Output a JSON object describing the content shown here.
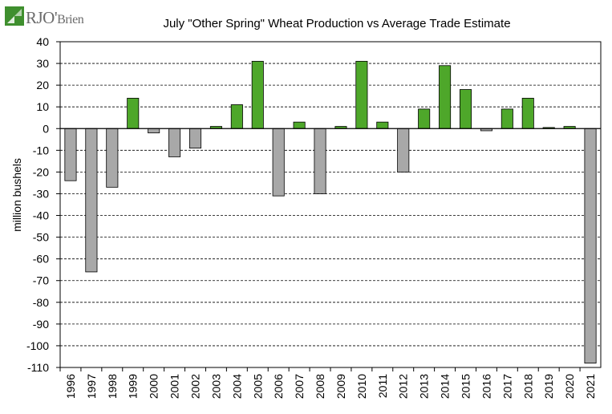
{
  "logo": {
    "text_main": "RJO",
    "text_apostrophe": "'",
    "text_tail": "Brien",
    "brand_green": "#3f8f2e"
  },
  "chart_data": {
    "type": "bar",
    "title": "July \"Other Spring\" Wheat Production vs Average Trade Estimate",
    "xlabel": "",
    "ylabel": "million bushels",
    "ylim": [
      -110,
      40
    ],
    "yticks": [
      40,
      30,
      20,
      10,
      0,
      -10,
      -20,
      -30,
      -40,
      -50,
      -60,
      -70,
      -80,
      -90,
      -100,
      -110
    ],
    "grid": "horizontal dashed",
    "categories": [
      "1996",
      "1997",
      "1998",
      "1999",
      "2000",
      "2001",
      "2002",
      "2003",
      "2004",
      "2005",
      "2006",
      "2007",
      "2008",
      "2009",
      "2010",
      "2011",
      "2012",
      "2013",
      "2014",
      "2015",
      "2016",
      "2017",
      "2018",
      "2019",
      "2020",
      "2021"
    ],
    "values": [
      -24,
      -66,
      -27,
      14,
      -2,
      -13,
      -9,
      1,
      11,
      31,
      -31,
      3,
      -30,
      1,
      31,
      3,
      -20,
      9,
      29,
      18,
      -1,
      9,
      14,
      0.5,
      1,
      -108
    ],
    "colors": {
      "positive": "#4ea72a",
      "negative": "#a8a8a8",
      "outline": "#000000"
    }
  }
}
